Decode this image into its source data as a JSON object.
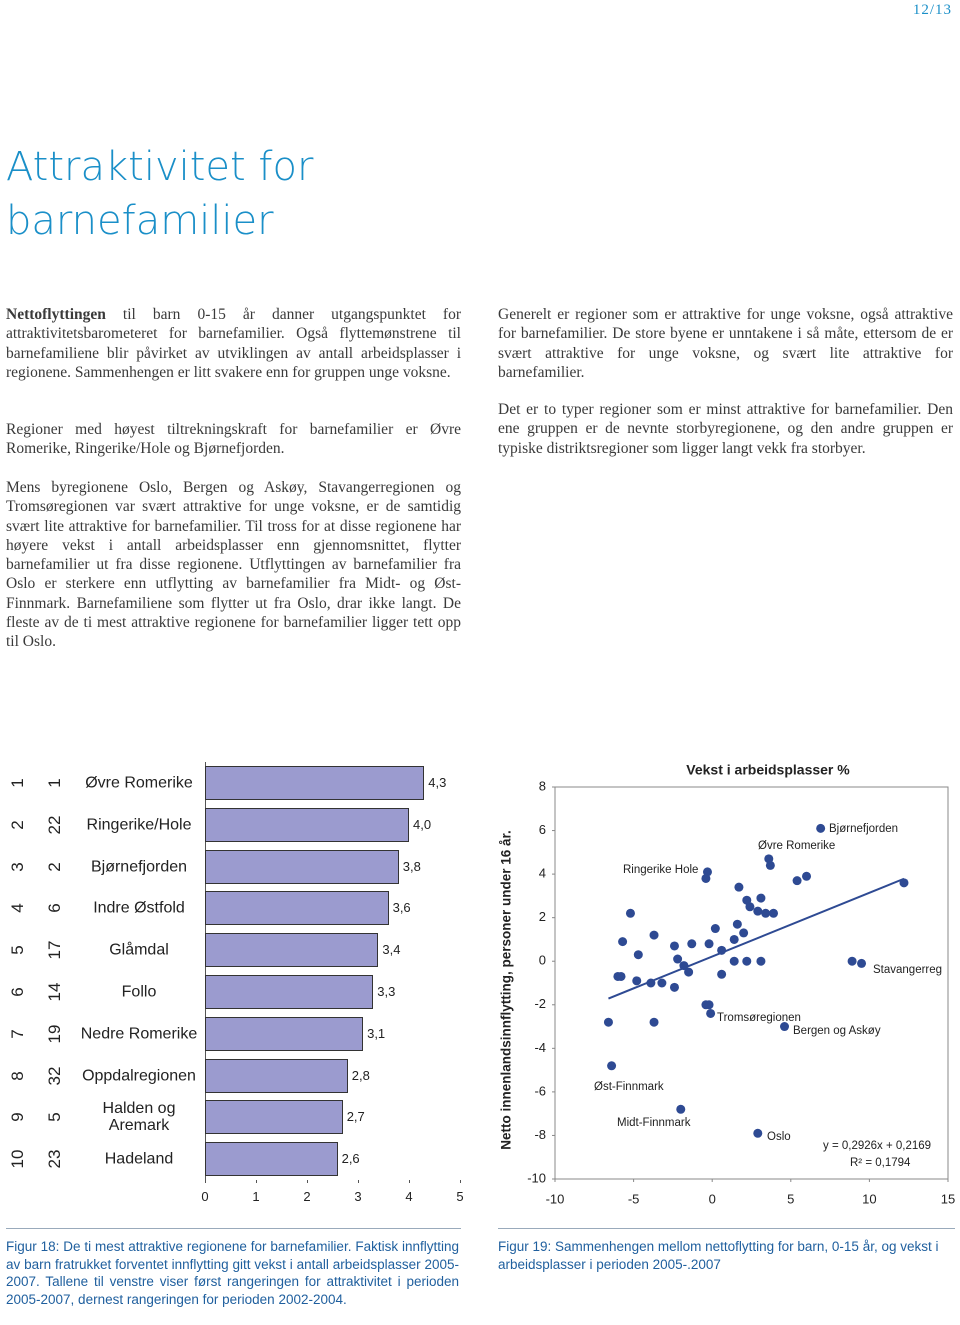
{
  "header": {
    "page_number": "12/13",
    "title": "Attraktivitet for barnefamilier"
  },
  "intro": {
    "lead": "Nettoflyttingen",
    "text": "til barn 0-15 år danner utgangspunktet for attraktivitetsbarometeret for barnefamilier. Også flyttemønstrene til barnefamiliene blir påvirket av utviklingen av antall arbeidsplasser i regionene. Sammenhengen er litt svakere enn for gruppen unge voksne."
  },
  "left_paragraphs": [
    "Regioner med høyest tiltrekningskraft for barnefamilier er Øvre Romerike, Ringerike/Hole og Bjørnefjorden.",
    "Mens byregionene Oslo, Bergen og Askøy, Stavangerregionen og Tromsøregionen var svært attraktive for unge voksne, er de samtidig svært lite attraktive for barnefamilier. Til tross for at disse regionene har høyere vekst i antall arbeidsplasser enn gjennomsnittet, flytter barnefamilier ut fra disse regionene. Utflyttingen av barnefamilier fra Oslo er sterkere enn utflytting av barnefamilier fra Midt- og Øst-Finnmark. Barnefamiliene som flytter ut fra Oslo, drar ikke langt. De fleste av de ti mest attraktive regionene for barnefamilier ligger tett opp til Oslo."
  ],
  "right_paragraphs": [
    "Generelt er regioner som er attraktive for unge voksne, også attraktive for barnefamilier. De store byene er unntakene i så måte, ettersom de er svært attraktive for unge voksne, og svært lite attraktive for barnefamilier.",
    "Det er to typer regioner som er minst attraktive for barnefamilier. Den ene gruppen er de nevnte storbyregionene, og den andre gruppen er typiske distriktsregioner som ligger langt vekk fra storbyer."
  ],
  "chart_data": [
    {
      "type": "bar",
      "categories": [
        "Øvre Romerike",
        "Ringerike/Hole",
        "Bjørnefjorden",
        "Indre Østfold",
        "Glåmdal",
        "Follo",
        "Nedre Romerike",
        "Oppdalregionen",
        "Halden og Aremark",
        "Hadeland"
      ],
      "rank_2005_2007": [
        1,
        2,
        3,
        4,
        5,
        6,
        7,
        8,
        9,
        10
      ],
      "rank_2002_2004": [
        1,
        22,
        2,
        6,
        17,
        14,
        19,
        32,
        5,
        23
      ],
      "values": [
        4.3,
        4.0,
        3.8,
        3.6,
        3.4,
        3.3,
        3.1,
        2.8,
        2.7,
        2.6
      ],
      "value_labels": [
        "4,3",
        "4,0",
        "3,8",
        "3,6",
        "3,4",
        "3,3",
        "3,1",
        "2,8",
        "2,7",
        "2,6"
      ],
      "color": "#9b9bcf",
      "xlim": [
        0,
        5
      ],
      "xticks": [
        0,
        1,
        2,
        3,
        4,
        5
      ]
    },
    {
      "type": "scatter",
      "title": "Vekst i arbeidsplasser %",
      "y_label": "Netto innenlandsinnflytting, personer under 16 år.",
      "x": [
        6.9,
        3.6,
        3.7,
        -0.3,
        -0.4,
        5.4,
        6.0,
        12.2,
        1.7,
        3.1,
        2.2,
        -5.2,
        2.4,
        2.9,
        3.4,
        3.9,
        0.2,
        1.6,
        2.0,
        1.4,
        -3.7,
        -5.7,
        -1.3,
        -2.4,
        -0.2,
        0.6,
        -4.7,
        -2.2,
        -1.8,
        1.4,
        2.2,
        3.1,
        8.9,
        9.5,
        -1.5,
        0.6,
        -6.0,
        -5.8,
        -4.8,
        -3.2,
        -3.9,
        -2.4,
        -0.4,
        -0.2,
        4.6,
        -0.1,
        -6.6,
        -3.7,
        -6.4,
        -2.0,
        2.9
      ],
      "values": [
        6.1,
        4.7,
        4.4,
        4.1,
        3.8,
        3.7,
        3.9,
        3.6,
        3.4,
        2.9,
        2.8,
        2.2,
        2.5,
        2.3,
        2.2,
        2.2,
        1.5,
        1.7,
        1.3,
        1.0,
        1.2,
        0.9,
        0.8,
        0.7,
        0.8,
        0.5,
        0.3,
        0.1,
        -0.2,
        0,
        0,
        0,
        0,
        -0.1,
        -0.5,
        -0.6,
        -0.7,
        -0.7,
        -0.9,
        -1.0,
        -1.0,
        -1.2,
        -2.0,
        -2.0,
        -3.0,
        -2.4,
        -2.8,
        -2.8,
        -4.8,
        -6.8,
        -7.9
      ],
      "color": "#2e4a93",
      "annotations": [
        "Bjørnefjorden",
        "Øvre Romerike",
        "Ringerike Hole",
        "Stavangerreg",
        "Tromsøregionen",
        "Bergen og Askøy",
        "Øst-Finnmark",
        "Midt-Finnmark",
        "Oslo"
      ],
      "trendline": {
        "slope": 0.2926,
        "intercept": 0.2169,
        "equation": "y = 0,2926x + 0,2169",
        "r_squared": "R² = 0,1794"
      },
      "xlim": [
        -10,
        15
      ],
      "xticks": [
        -10,
        -5,
        0,
        5,
        10,
        15
      ],
      "ylim": [
        -10,
        8
      ],
      "yticks": [
        -10,
        -8,
        -6,
        -4,
        -2,
        0,
        2,
        4,
        6,
        8
      ]
    }
  ],
  "captions": [
    "Figur 18: De ti mest attraktive regionene for barnefamilier. Faktisk innflytting av barn fratrukket forventet innflytting gitt vekst i antall arbeidsplasser 2005-2007. Tallene til venstre viser først rangeringen for attraktivitet i perioden 2005-2007, dernest rangeringen for perioden 2002-2004.",
    "Figur 19: Sammenhengen mellom nettoflytting for barn, 0-15 år, og vekst i arbeidsplasser i perioden 2005-.2007"
  ]
}
